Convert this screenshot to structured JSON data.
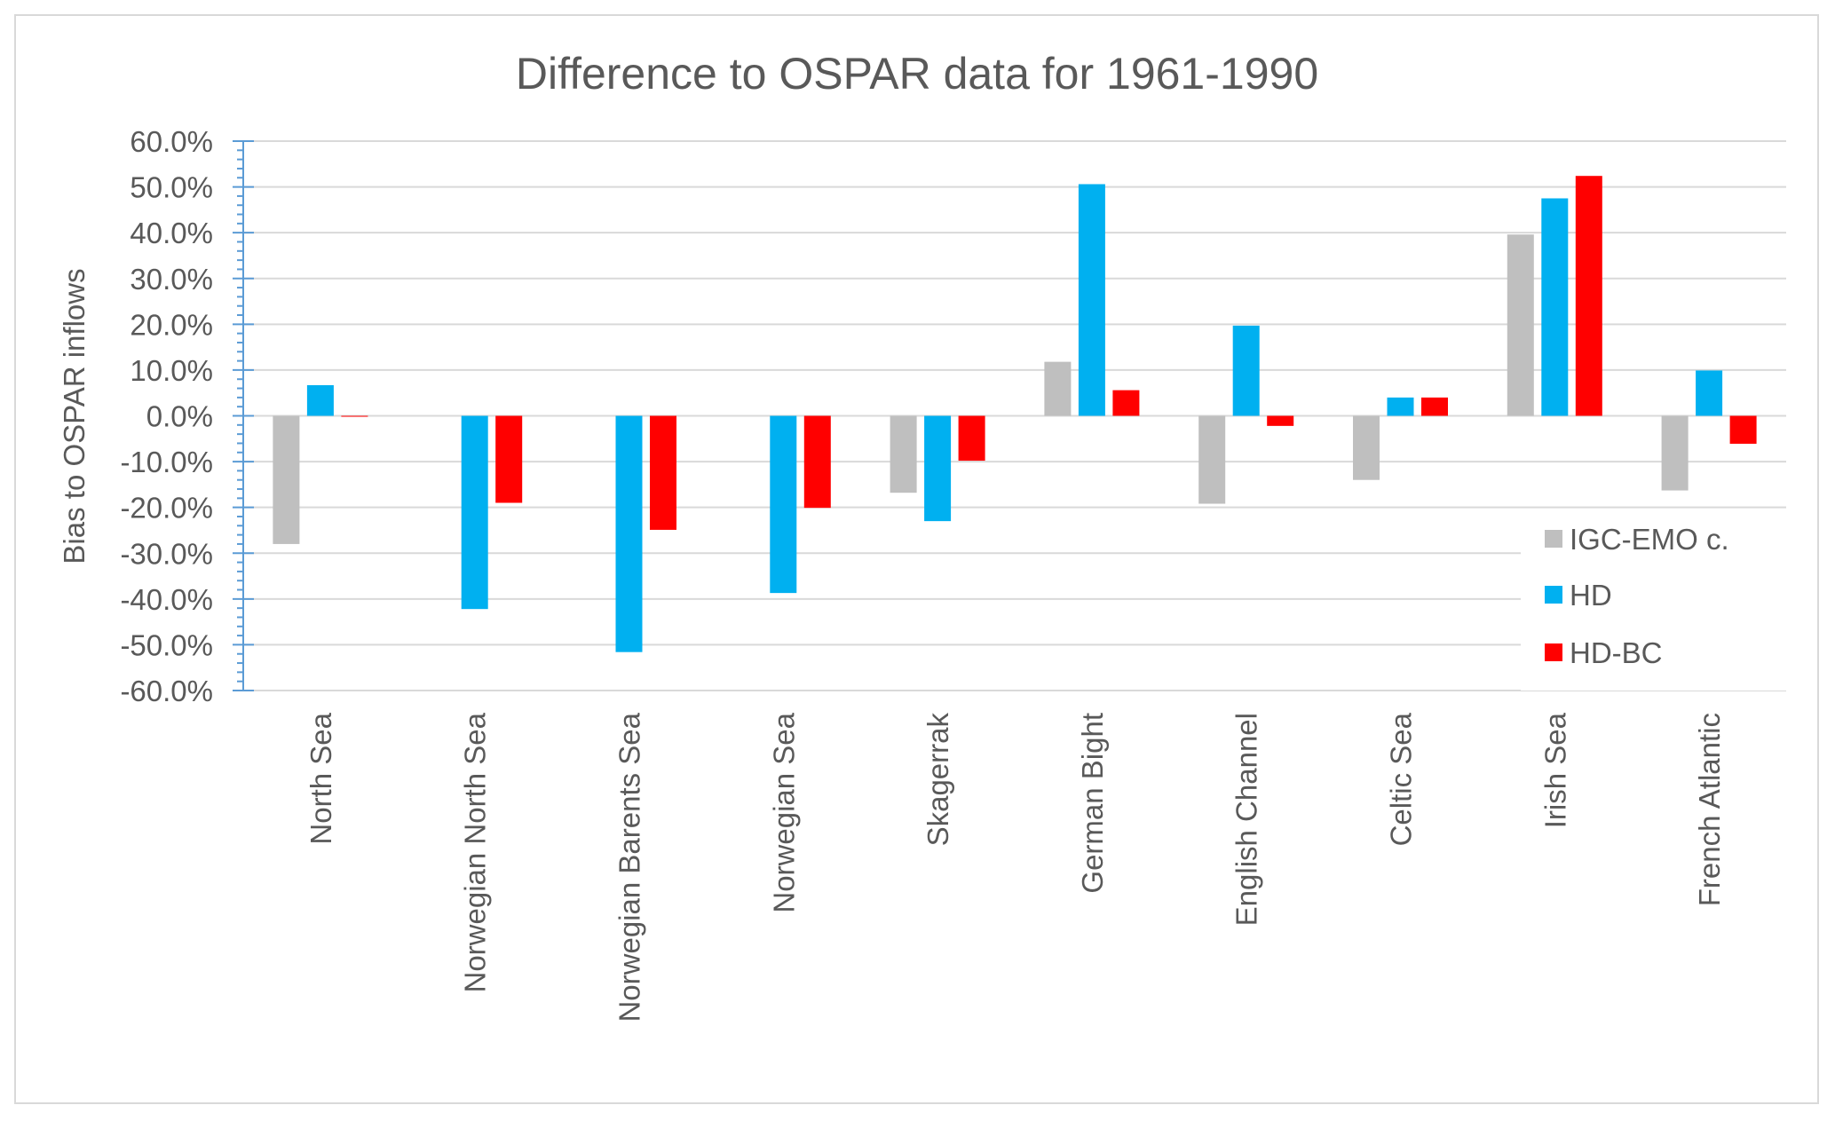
{
  "chart_data": {
    "type": "bar",
    "title": "Difference to OSPAR data for 1961-1990",
    "xlabel": "",
    "ylabel": "Bias to OSPAR inflows",
    "ylim": [
      -60,
      60
    ],
    "y_unit": "%",
    "y_ticks": [
      "60.0%",
      "50.0%",
      "40.0%",
      "30.0%",
      "20.0%",
      "10.0%",
      "0.0%",
      "-10.0%",
      "-20.0%",
      "-30.0%",
      "-40.0%",
      "-50.0%",
      "-60.0%"
    ],
    "y_tick_values": [
      60,
      50,
      40,
      30,
      20,
      10,
      0,
      -10,
      -20,
      -30,
      -40,
      -50,
      -60
    ],
    "grid": true,
    "legend_position": "right",
    "categories": [
      "North Sea",
      "Norwegian North Sea",
      "Norwegian Barents Sea",
      "Norwegian Sea",
      "Skagerrak",
      "German Bight",
      "English Channel",
      "Celtic Sea",
      "Irish Sea",
      "French Atlantic"
    ],
    "series": [
      {
        "name": "IGC-EMO c.",
        "color": "#BFBFBF",
        "values": [
          -28.0,
          null,
          null,
          null,
          -16.8,
          11.8,
          -19.2,
          -14.0,
          39.6,
          -16.3
        ]
      },
      {
        "name": "HD",
        "color": "#00B0F0",
        "values": [
          6.7,
          -42.2,
          -51.6,
          -38.7,
          -23.0,
          50.6,
          19.7,
          4.0,
          47.5,
          9.9
        ]
      },
      {
        "name": "HD-BC",
        "color": "#FF0000",
        "values": [
          -0.2,
          -19.0,
          -24.9,
          -20.1,
          -9.8,
          5.6,
          -2.2,
          4.0,
          52.4,
          -6.1
        ]
      }
    ]
  }
}
